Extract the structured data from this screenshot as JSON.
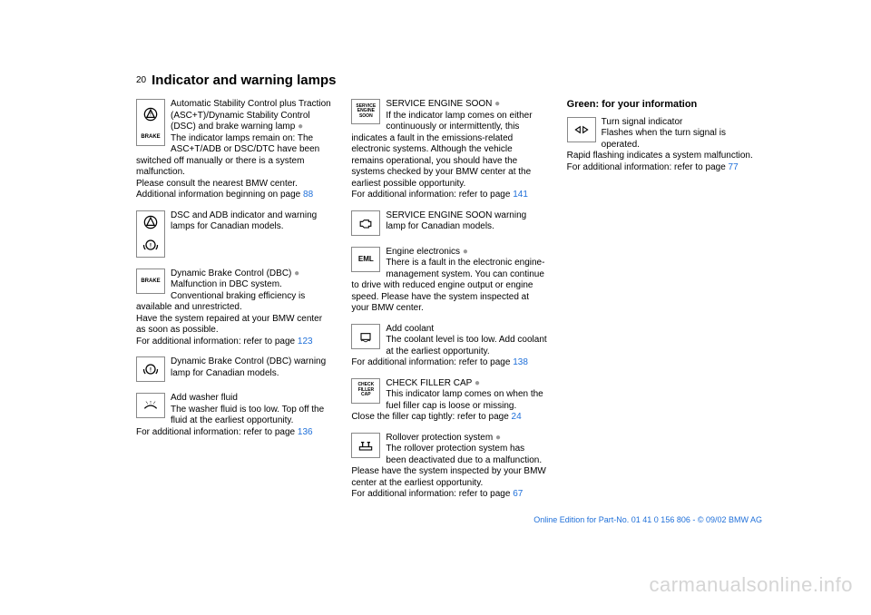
{
  "page_number": "20",
  "title": "Indicator and warning lamps",
  "link_color": "#1e6fd9",
  "text_color": "#000000",
  "watermark_color": "#d5d5d5",
  "entries": [
    {
      "icon": "asc-brake-stack",
      "text": "Automatic Stability Control plus Traction (ASC+T)/Dynamic Stability Control (DSC) and brake warning lamp",
      "dot": true,
      "cont": "The indicator lamps remain on: The ASC+T/ADB or DSC/DTC have been switched off manually or there is a system malfunction.\nPlease consult the nearest BMW center.\nAdditional information beginning on page",
      "page_ref": "88"
    },
    {
      "icon": "dsc-canadian-stack",
      "text": "DSC and ADB indicator and warning lamps for Canadian models."
    },
    {
      "icon": "brake-text",
      "text": "Dynamic Brake Control (DBC)",
      "dot": true,
      "cont": "Malfunction in DBC system. Conventional braking efficiency is available and unrestricted.\nHave the system repaired at your BMW center as soon as possible.\nFor additional information: refer to page",
      "page_ref": "123"
    },
    {
      "icon": "brake-canadian",
      "text": "Dynamic Brake Control (DBC) warning lamp for Canadian models."
    },
    {
      "icon": "washer",
      "text": "Add washer fluid",
      "cont": "The washer fluid is too low. Top off the fluid at the earliest opportunity.\nFor additional information: refer to page",
      "page_ref": "136"
    },
    {
      "icon": "service-engine-soon",
      "text": "SERVICE ENGINE SOON",
      "dot": true,
      "cont": "If the indicator lamp comes on either continuously or intermittently, this indicates a fault in the emissions-related electronic systems. Although the vehicle remains operational, you should have the systems checked by your BMW center at the earliest possible opportunity.\nFor additional information: refer to page",
      "page_ref": "141"
    },
    {
      "icon": "engine-outline",
      "text": "SERVICE ENGINE SOON warning lamp for Canadian models."
    },
    {
      "icon": "eml",
      "text": "Engine electronics",
      "dot": true,
      "cont": "There is a fault in the electronic engine-management system. You can continue to drive with reduced engine output or engine speed. Please have the system inspected at your BMW center."
    },
    {
      "icon": "coolant",
      "text": "Add coolant",
      "cont": "The coolant level is too low. Add coolant at the earliest opportunity.\nFor additional information: refer to page",
      "page_ref": "138"
    },
    {
      "icon": "check-filler-cap",
      "text": "CHECK FILLER CAP",
      "dot": true,
      "cont": "This indicator lamp comes on when the fuel filler cap is loose or missing.\nClose the filler cap tightly: refer to page",
      "page_ref": "24"
    },
    {
      "icon": "rollover",
      "text": "Rollover protection system",
      "dot": true,
      "cont": "The rollover protection system has been deactivated due to a malfunction. Please have the system inspected by your BMW center at the earliest opportunity.\nFor additional information: refer to page",
      "page_ref": "67"
    }
  ],
  "green_heading": "Green: for your information",
  "green_entry": {
    "icon": "turn-signal",
    "text": "Turn signal indicator",
    "cont": "Flashes when the turn signal is operated.\nRapid flashing indicates a system malfunction.\nFor additional information: refer to page",
    "page_ref": "77"
  },
  "footer": "Online Edition for Part-No. 01 41 0 156 806 - © 09/02 BMW AG",
  "watermark": "carmanualsonline.info"
}
